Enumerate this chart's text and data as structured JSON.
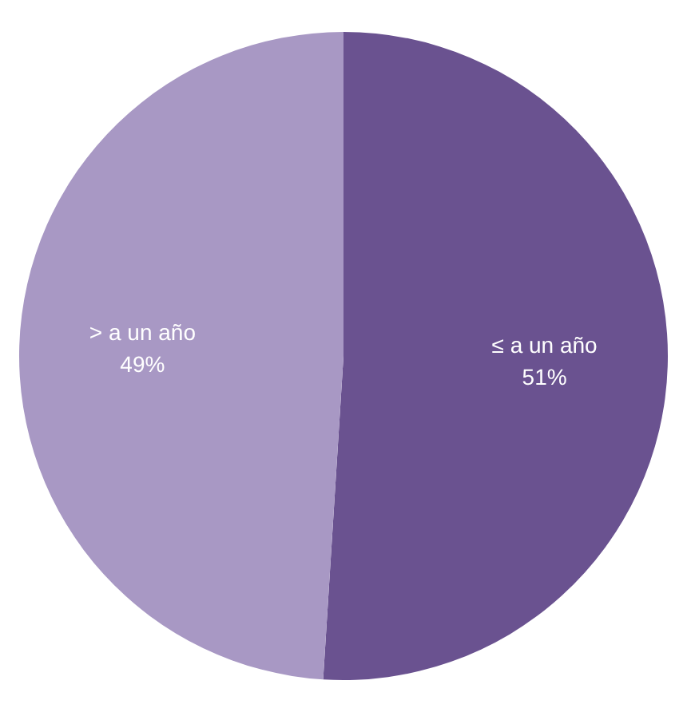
{
  "chart_data": {
    "type": "pie",
    "categories": [
      "≤ a un año",
      "> a un año"
    ],
    "values": [
      51,
      49
    ],
    "colors": [
      "#6a5290",
      "#a898c4"
    ],
    "value_labels": [
      "51%",
      "49%"
    ],
    "legend": false
  }
}
